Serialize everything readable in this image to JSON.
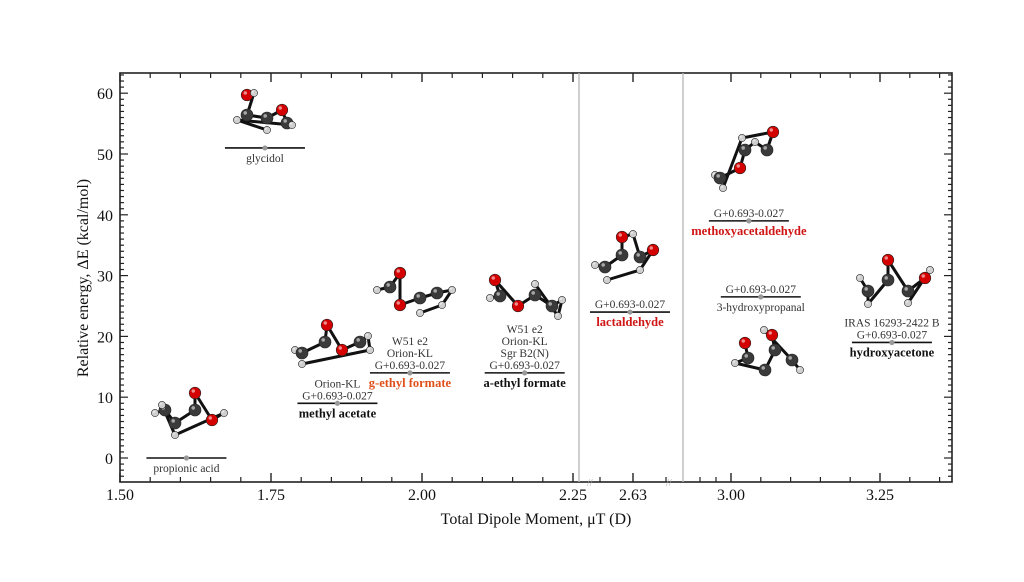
{
  "chart_data": {
    "type": "scatter",
    "title": "",
    "xlabel": "Total Dipole Moment, μT (D)",
    "ylabel": "Relative energy, ΔE (kcal/mol)",
    "xlim": [
      1.5,
      3.37
    ],
    "ylim": [
      -4,
      63
    ],
    "axis_break": "between 2.25 and 2.63 and between 2.63 and 3.00",
    "x_ticks": [
      "1.50",
      "1.75",
      "2.00",
      "2.25",
      "2.63",
      "3.00",
      "3.25"
    ],
    "y_ticks": [
      "0",
      "10",
      "20",
      "30",
      "40",
      "50",
      "60"
    ],
    "grid": false,
    "points": [
      {
        "name": "propionic acid",
        "x": 1.61,
        "y": 0,
        "sources": [],
        "color": "#4a1850",
        "bold": false
      },
      {
        "name": "glycidol",
        "x": 1.74,
        "y": 51,
        "sources": [],
        "color": "#4a1850",
        "bold": false
      },
      {
        "name": "methyl acetate",
        "x": 1.86,
        "y": 9,
        "sources": [
          "Orion-KL",
          "G+0.693-0.027"
        ],
        "color": "#111111",
        "bold": true
      },
      {
        "name": "g-ethyl formate",
        "x": 1.98,
        "y": 14,
        "sources": [
          "W51 e2",
          "Orion-KL",
          "G+0.693-0.027"
        ],
        "color": "#e0501a",
        "bold": true
      },
      {
        "name": "a-ethyl formate",
        "x": 2.17,
        "y": 14,
        "sources": [
          "W51 e2",
          "Orion-KL",
          "Sgr B2(N)",
          "G+0.693-0.027"
        ],
        "color": "#111111",
        "bold": true
      },
      {
        "name": "lactaldehyde",
        "x": 2.62,
        "y": 24,
        "sources": [
          "G+0.693-0.027"
        ],
        "color": "#d01515",
        "bold": true
      },
      {
        "name": "methoxyacetaldehyde",
        "x": 3.03,
        "y": 39,
        "sources": [
          "G+0.693-0.027"
        ],
        "color": "#d01515",
        "bold": true
      },
      {
        "name": "3-hydroxypropanal",
        "x": 3.05,
        "y": 26.5,
        "sources": [
          "G+0.693-0.027"
        ],
        "color": "#111111",
        "bold": false
      },
      {
        "name": "hydroxyacetone",
        "x": 3.27,
        "y": 19,
        "sources": [
          "IRAS 16293-2422 B",
          "G+0.693-0.027"
        ],
        "color": "#111111",
        "bold": true
      }
    ]
  }
}
